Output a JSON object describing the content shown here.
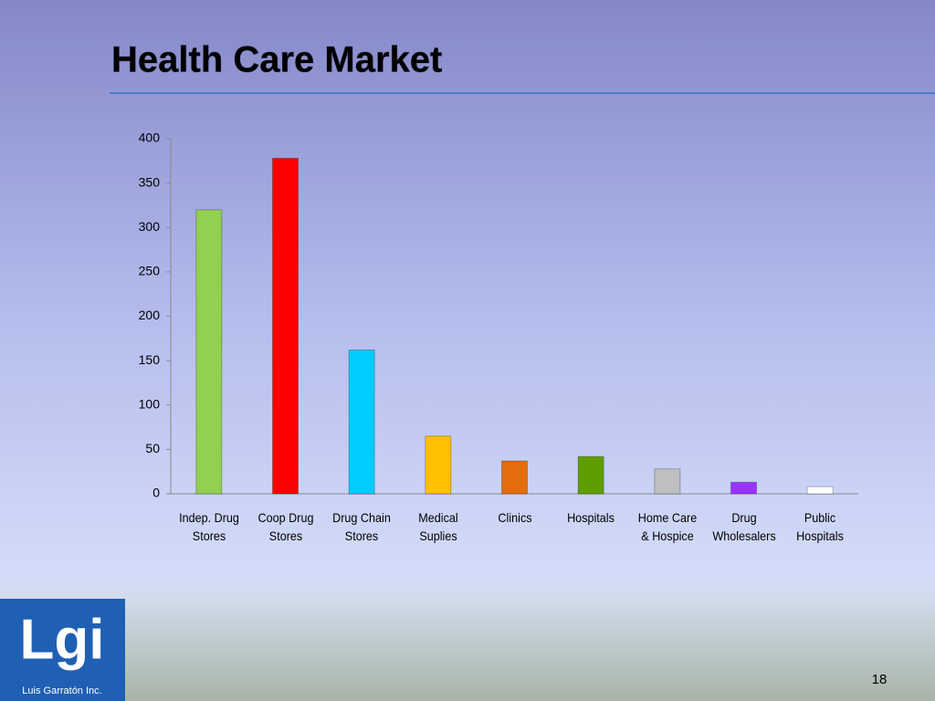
{
  "chart_data": {
    "type": "bar",
    "title": "Health Care Market",
    "categories": [
      "Indep. Drug Stores",
      "Coop Drug Stores",
      "Drug Chain Stores",
      "Medical Suplies",
      "Clinics",
      "Hospitals",
      "Home Care & Hospice",
      "Drug Wholesalers",
      "Public Hospitals"
    ],
    "values": [
      320,
      378,
      162,
      65,
      37,
      42,
      28,
      13,
      8
    ],
    "colors": [
      "#92d050",
      "#ff0000",
      "#00ccff",
      "#ffc000",
      "#e46c0a",
      "#5f9e00",
      "#bfbfbf",
      "#9933ff",
      "#ffffff"
    ],
    "ylim": [
      0,
      400
    ],
    "yticks": [
      0,
      50,
      100,
      150,
      200,
      250,
      300,
      350,
      400
    ],
    "grid": false
  },
  "slide": {
    "page_number": "18",
    "logo": {
      "mark": "Lgi",
      "name": "Luis Garratón Inc."
    }
  }
}
